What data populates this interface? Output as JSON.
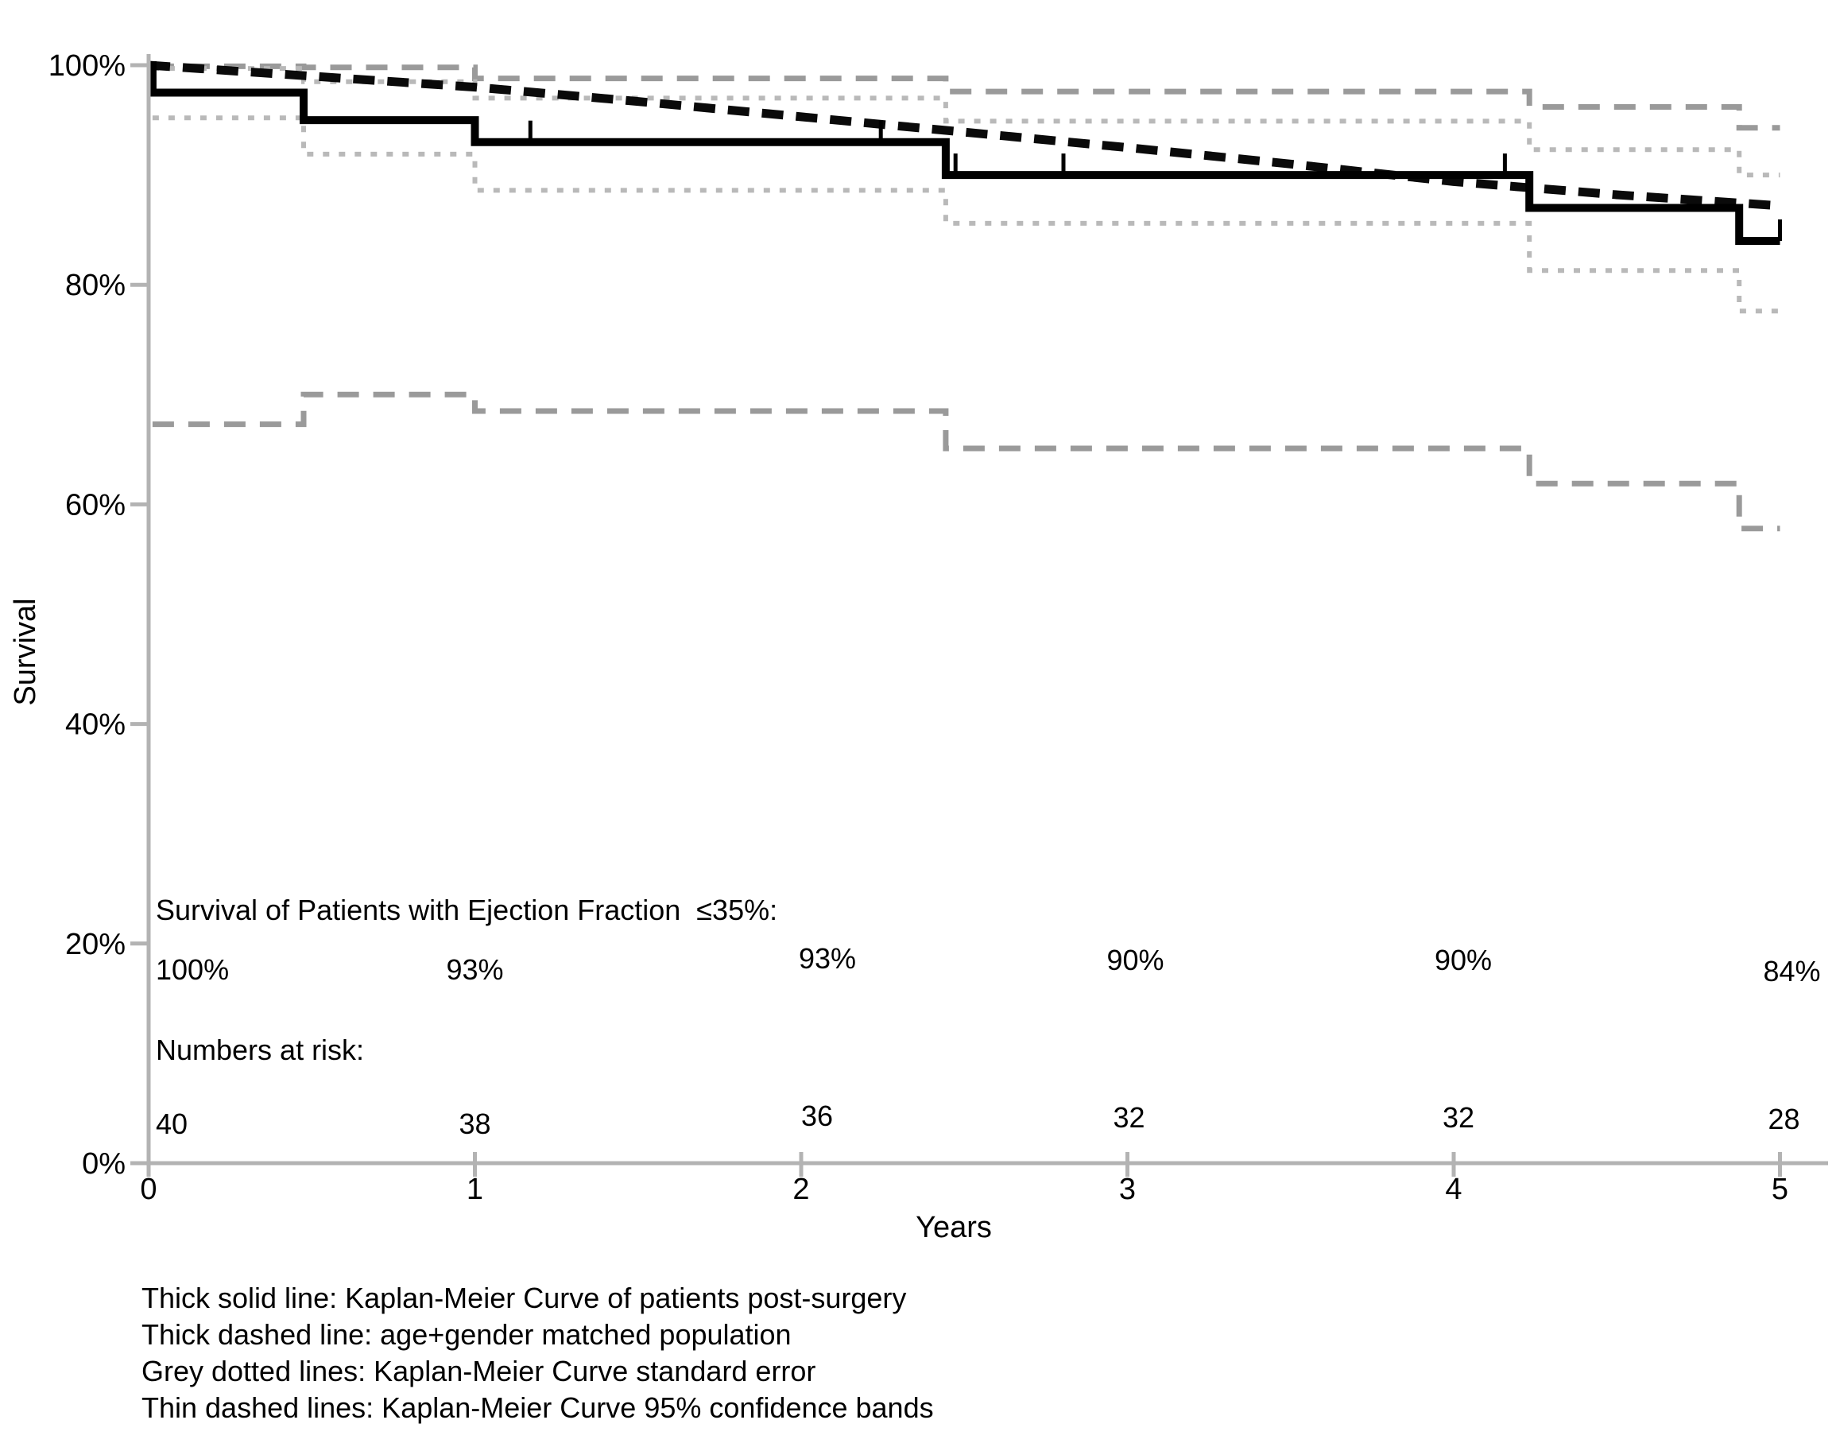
{
  "chart_data": {
    "type": "line",
    "subtype": "kaplan-meier-step",
    "title": "",
    "xlabel": "Years",
    "ylabel": "Survival",
    "x_tick_labels": [
      "0",
      "1",
      "2",
      "3",
      "4",
      "5"
    ],
    "x_tick_values": [
      0,
      1,
      2,
      3,
      4,
      5
    ],
    "y_tick_labels": [
      "100%",
      "80%",
      "60%",
      "40%",
      "20%",
      "0%"
    ],
    "y_tick_values": [
      100,
      80,
      60,
      40,
      20,
      0
    ],
    "xlim": [
      0,
      5
    ],
    "ylim": [
      0,
      100
    ],
    "grid": false,
    "legend_position": "below-left",
    "series": [
      {
        "key": "km",
        "name": "Kaplan-Meier Curve of patients post-surgery",
        "style": "thick-solid-black",
        "points": [
          {
            "t": 0.0,
            "s": 100.0
          },
          {
            "t": 0.012,
            "s": 97.5
          },
          {
            "t": 0.475,
            "s": 95.0
          },
          {
            "t": 1.0,
            "s": 93.0
          },
          {
            "t": 2.443,
            "s": 90.0
          },
          {
            "t": 4.232,
            "s": 87.0
          },
          {
            "t": 4.875,
            "s": 84.0
          }
        ],
        "end_t": 5.0,
        "censor_times": [
          1.17,
          2.244,
          2.473,
          2.804,
          4.157,
          5.0
        ]
      },
      {
        "key": "population",
        "name": "age+gender matched population",
        "style": "thick-dashed-black",
        "x": [
          0,
          0.5,
          1,
          1.5,
          2,
          2.5,
          3,
          3.5,
          4,
          4.5,
          5
        ],
        "y": [
          100,
          99.0,
          98.0,
          96.7,
          95.3,
          93.9,
          92.5,
          91.0,
          89.4,
          88.2,
          87.2
        ]
      },
      {
        "key": "se_upper",
        "name": "Kaplan-Meier Curve standard error (upper)",
        "style": "grey-dotted",
        "step_times": [
          0.012,
          0.475,
          1.0,
          2.443,
          4.232,
          4.875
        ],
        "values": [
          99.7,
          98.5,
          97.0,
          94.9,
          92.3,
          90.0
        ],
        "end_t": 5.0
      },
      {
        "key": "se_lower",
        "name": "Kaplan-Meier Curve standard error (lower)",
        "style": "grey-dotted",
        "step_times": [
          0.012,
          0.475,
          1.0,
          2.443,
          4.232,
          4.875
        ],
        "values": [
          95.2,
          91.9,
          88.6,
          85.6,
          81.3,
          77.6
        ],
        "end_t": 5.0
      },
      {
        "key": "ci_upper",
        "name": "Kaplan-Meier Curve 95% confidence band (upper)",
        "style": "thin-dashed-grey",
        "step_times": [
          0.012,
          0.475,
          1.0,
          2.443,
          4.232,
          4.875
        ],
        "values": [
          99.9,
          99.8,
          98.8,
          97.6,
          96.2,
          94.3
        ],
        "end_t": 5.0
      },
      {
        "key": "ci_lower",
        "name": "Kaplan-Meier Curve 95% confidence band (lower)",
        "style": "thin-dashed-grey",
        "step_times": [
          0.012,
          0.475,
          1.0,
          2.443,
          4.232,
          4.875
        ],
        "values": [
          67.3,
          70.0,
          68.5,
          65.1,
          61.9,
          57.8
        ],
        "end_t": 5.0
      }
    ],
    "annotations": {
      "survival_title": "Survival of Patients with Ejection Fraction  ≤35%:",
      "survival_values": [
        "100%",
        "93%",
        "93%",
        "90%",
        "90%",
        "84%"
      ],
      "survival_value_years": [
        0,
        1,
        2,
        3,
        4,
        5
      ],
      "risk_title": "Numbers at risk:",
      "risk_values": [
        "40",
        "38",
        "36",
        "32",
        "32",
        "28"
      ],
      "risk_value_years": [
        0,
        1,
        2,
        3,
        4,
        5
      ]
    },
    "legend": [
      "Thick solid line: Kaplan-Meier Curve of patients post-surgery",
      "Thick dashed line: age+gender matched population",
      "Grey dotted lines: Kaplan-Meier Curve standard error",
      "Thin dashed lines: Kaplan-Meier Curve 95% confidence bands"
    ],
    "colors": {
      "km": "#000000",
      "population": "#0a0a0a",
      "se_band": "#b9b9b9",
      "ci_band": "#9a9a9a",
      "axis": "#b3b3b3",
      "text": "#000000",
      "background": "#ffffff"
    }
  }
}
